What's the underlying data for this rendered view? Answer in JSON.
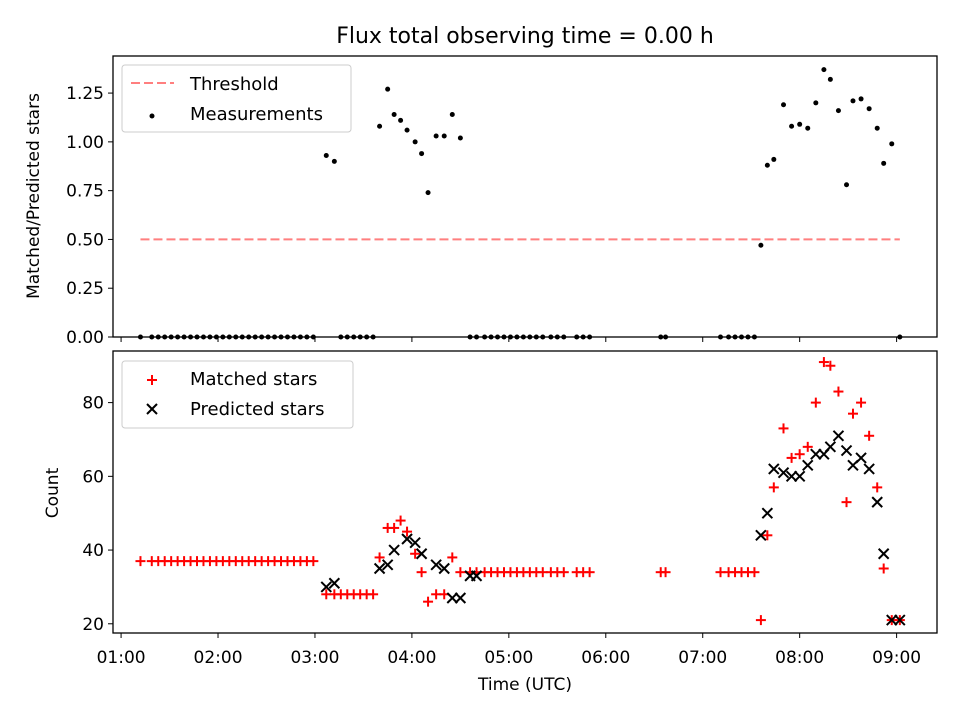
{
  "title": "Flux total observing time = 0.00 h",
  "chart_data": [
    {
      "type": "scatter",
      "panel": "top",
      "xlabel": "",
      "ylabel": "Matched/Predicted stars",
      "xlim": [
        "00:55",
        "09:25"
      ],
      "ylim": [
        0,
        1.44
      ],
      "yticks": [
        "0.00",
        "0.25",
        "0.50",
        "0.75",
        "1.00",
        "1.25"
      ],
      "legend_position": "upper-left",
      "series": [
        {
          "name": "Threshold",
          "kind": "line",
          "style": "dashed",
          "color": "#ff7f7f",
          "x": [
            "01:12",
            "09:02"
          ],
          "y": [
            0.5,
            0.5
          ]
        },
        {
          "name": "Measurements",
          "kind": "points",
          "color": "#000000",
          "x": [
            "01:12",
            "01:19",
            "01:23",
            "01:27",
            "01:31",
            "01:35",
            "01:39",
            "01:43",
            "01:47",
            "01:51",
            "01:55",
            "01:59",
            "02:03",
            "02:07",
            "02:11",
            "02:15",
            "02:19",
            "02:23",
            "02:27",
            "02:31",
            "02:35",
            "02:39",
            "02:43",
            "02:47",
            "02:51",
            "02:55",
            "02:59",
            "03:07",
            "03:12",
            "03:16",
            "03:20",
            "03:24",
            "03:28",
            "03:32",
            "03:36",
            "03:40",
            "03:45",
            "03:49",
            "03:53",
            "03:57",
            "04:02",
            "04:06",
            "04:10",
            "04:15",
            "04:20",
            "04:25",
            "04:30",
            "04:36",
            "04:40",
            "04:45",
            "04:49",
            "04:53",
            "04:57",
            "05:01",
            "05:05",
            "05:09",
            "05:13",
            "05:17",
            "05:21",
            "05:26",
            "05:30",
            "05:34",
            "05:42",
            "05:46",
            "05:50",
            "06:34",
            "06:37",
            "07:11",
            "07:16",
            "07:20",
            "07:24",
            "07:28",
            "07:32",
            "07:36",
            "07:40",
            "07:44",
            "07:50",
            "07:55",
            "08:00",
            "08:05",
            "08:10",
            "08:15",
            "08:19",
            "08:24",
            "08:29",
            "08:33",
            "08:38",
            "08:43",
            "08:48",
            "08:52",
            "08:57",
            "09:02"
          ],
          "y": [
            0,
            0,
            0,
            0,
            0,
            0,
            0,
            0,
            0,
            0,
            0,
            0,
            0,
            0,
            0,
            0,
            0,
            0,
            0,
            0,
            0,
            0,
            0,
            0,
            0,
            0,
            0,
            0.93,
            0.9,
            0,
            0,
            0,
            0,
            0,
            0,
            1.08,
            1.27,
            1.14,
            1.11,
            1.06,
            1.0,
            0.94,
            0.74,
            1.03,
            1.03,
            1.14,
            1.02,
            0,
            0,
            0,
            0,
            0,
            0,
            0,
            0,
            0,
            0,
            0,
            0,
            0,
            0,
            0,
            0,
            0,
            0,
            0,
            0,
            0,
            0,
            0,
            0,
            0,
            0,
            0.47,
            0.88,
            0.91,
            1.19,
            1.08,
            1.09,
            1.07,
            1.2,
            1.37,
            1.32,
            1.16,
            0.78,
            1.21,
            1.22,
            1.17,
            1.07,
            0.89,
            0.99,
            0
          ]
        }
      ]
    },
    {
      "type": "scatter",
      "panel": "bottom",
      "xlabel": "Time (UTC)",
      "ylabel": "Count",
      "xlim": [
        "00:55",
        "09:25"
      ],
      "ylim": [
        17.5,
        94
      ],
      "yticks": [
        "20",
        "40",
        "60",
        "80"
      ],
      "xticks": [
        "01:00",
        "02:00",
        "03:00",
        "04:00",
        "05:00",
        "06:00",
        "07:00",
        "08:00",
        "09:00"
      ],
      "legend_position": "upper-left",
      "series": [
        {
          "name": "Matched stars",
          "marker": "+",
          "color": "#ff0000",
          "x": [
            "01:12",
            "01:19",
            "01:23",
            "01:27",
            "01:31",
            "01:35",
            "01:39",
            "01:43",
            "01:47",
            "01:51",
            "01:55",
            "01:59",
            "02:03",
            "02:07",
            "02:11",
            "02:15",
            "02:19",
            "02:23",
            "02:27",
            "02:31",
            "02:35",
            "02:39",
            "02:43",
            "02:47",
            "02:51",
            "02:55",
            "02:59",
            "03:07",
            "03:12",
            "03:16",
            "03:20",
            "03:24",
            "03:28",
            "03:32",
            "03:36",
            "03:40",
            "03:45",
            "03:49",
            "03:53",
            "03:57",
            "04:02",
            "04:06",
            "04:10",
            "04:15",
            "04:20",
            "04:25",
            "04:30",
            "04:36",
            "04:40",
            "04:45",
            "04:49",
            "04:53",
            "04:57",
            "05:01",
            "05:05",
            "05:09",
            "05:13",
            "05:17",
            "05:21",
            "05:26",
            "05:30",
            "05:34",
            "05:42",
            "05:46",
            "05:50",
            "06:34",
            "06:37",
            "07:11",
            "07:16",
            "07:20",
            "07:24",
            "07:28",
            "07:32",
            "07:36",
            "07:40",
            "07:44",
            "07:50",
            "07:55",
            "08:00",
            "08:05",
            "08:10",
            "08:15",
            "08:19",
            "08:24",
            "08:29",
            "08:33",
            "08:38",
            "08:43",
            "08:48",
            "08:52",
            "08:57",
            "09:02"
          ],
          "y": [
            37,
            37,
            37,
            37,
            37,
            37,
            37,
            37,
            37,
            37,
            37,
            37,
            37,
            37,
            37,
            37,
            37,
            37,
            37,
            37,
            37,
            37,
            37,
            37,
            37,
            37,
            37,
            28,
            28,
            28,
            28,
            28,
            28,
            28,
            28,
            38,
            46,
            46,
            48,
            45,
            39,
            34,
            26,
            28,
            28,
            38,
            34,
            34,
            34,
            34,
            34,
            34,
            34,
            34,
            34,
            34,
            34,
            34,
            34,
            34,
            34,
            34,
            34,
            34,
            34,
            34,
            34,
            34,
            34,
            34,
            34,
            34,
            34,
            21,
            44,
            57,
            73,
            65,
            66,
            68,
            80,
            91,
            90,
            83,
            53,
            77,
            80,
            71,
            57,
            35,
            21,
            21
          ]
        },
        {
          "name": "Predicted stars",
          "marker": "x",
          "color": "#000000",
          "x": [
            "03:07",
            "03:12",
            "03:40",
            "03:45",
            "03:49",
            "03:57",
            "04:02",
            "04:06",
            "04:15",
            "04:20",
            "04:25",
            "04:30",
            "04:36",
            "04:40",
            "07:36",
            "07:40",
            "07:44",
            "07:50",
            "07:55",
            "08:00",
            "08:05",
            "08:10",
            "08:15",
            "08:19",
            "08:24",
            "08:29",
            "08:33",
            "08:38",
            "08:43",
            "08:48",
            "08:52",
            "08:57",
            "09:02"
          ],
          "y": [
            30,
            31,
            35,
            36,
            40,
            43,
            42,
            39,
            36,
            35,
            27,
            27,
            33,
            33,
            44,
            50,
            62,
            61,
            60,
            60,
            63,
            66,
            66,
            68,
            71,
            67,
            63,
            65,
            62,
            53,
            39,
            21,
            21
          ]
        }
      ]
    }
  ]
}
